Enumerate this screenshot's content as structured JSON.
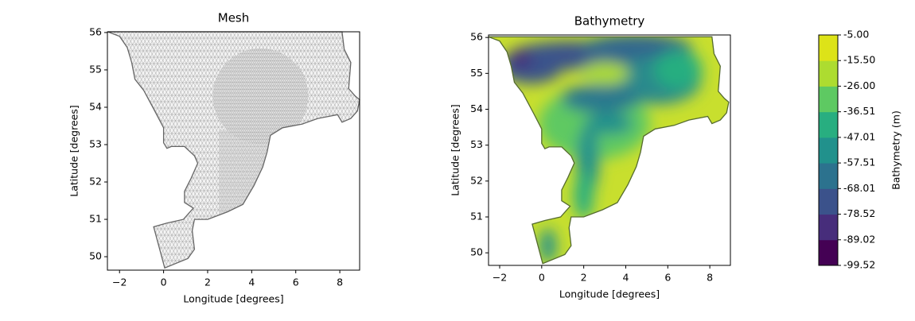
{
  "chart_data": [
    {
      "type": "map",
      "title": "Mesh",
      "xlabel": "Longitude [degrees]",
      "ylabel": "Latitude [degrees]",
      "xlim": [
        -2.55,
        8.9
      ],
      "ylim": [
        49.64,
        56.02
      ],
      "xticks": [
        {
          "value": -2,
          "label": "−2"
        },
        0,
        2,
        4,
        6,
        8
      ],
      "yticks": [
        50,
        51,
        52,
        53,
        54,
        55,
        56
      ]
    },
    {
      "type": "map",
      "title": "Bathymetry",
      "xlabel": "Longitude [degrees]",
      "ylabel": "Latitude [degrees]",
      "xlim": [
        -2.53,
        8.98
      ],
      "ylim": [
        49.65,
        56.07
      ],
      "xticks": [
        {
          "value": -2,
          "label": "−2"
        },
        0,
        2,
        4,
        6,
        8
      ],
      "yticks": [
        50,
        51,
        52,
        53,
        54,
        55,
        56
      ],
      "colorbar": {
        "label": "Bathymetry (m)",
        "ticks": [
          -99.52,
          -89.02,
          -78.52,
          -68.01,
          -57.51,
          -47.01,
          -36.51,
          {
            "value": -26,
            "label": "-26.00"
          },
          {
            "value": -15.5,
            "label": "-15.50"
          },
          {
            "value": -5,
            "label": "-5.00"
          }
        ],
        "colors": [
          "#440154",
          "#472d7b",
          "#3b528b",
          "#2c728e",
          "#21918c",
          "#28ae80",
          "#5ec962",
          "#addc30",
          "#dde318"
        ]
      }
    }
  ]
}
